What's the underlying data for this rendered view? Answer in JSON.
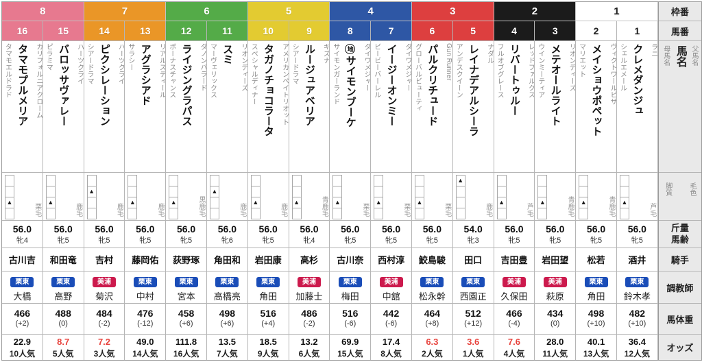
{
  "row_labels": {
    "frame": "枠番",
    "number": "馬番",
    "name": "馬名",
    "sire": "父馬名",
    "dam": "母馬名",
    "style": "脚質",
    "coat": "毛色",
    "kinryo": "斤量",
    "age": "馬齢",
    "jockey": "騎手",
    "trainer": "調教師",
    "body_weight": "馬体重",
    "odds": "オッズ"
  },
  "glyphs": {
    "style_marker": "▲"
  },
  "colors": {
    "frames": {
      "8": {
        "bg": "#e7798f",
        "fg": "#ffffff"
      },
      "7": {
        "bg": "#ea9627",
        "fg": "#ffffff"
      },
      "6": {
        "bg": "#54ab48",
        "fg": "#ffffff"
      },
      "5": {
        "bg": "#e3cb31",
        "fg": "#ffffff"
      },
      "4": {
        "bg": "#2e57a5",
        "fg": "#ffffff"
      },
      "3": {
        "bg": "#dd3f3f",
        "fg": "#ffffff"
      },
      "2": {
        "bg": "#1b1b1b",
        "fg": "#ffffff"
      },
      "1": {
        "bg": "#ffffff",
        "fg": "#222222"
      }
    },
    "training_centers": {
      "栗東": "#1a4db8",
      "美浦": "#cc1a4d"
    },
    "hot_odds": "#e8423c"
  },
  "frames": [
    {
      "no": "8"
    },
    {
      "no": "7"
    },
    {
      "no": "6"
    },
    {
      "no": "5"
    },
    {
      "no": "4"
    },
    {
      "no": "3"
    },
    {
      "no": "2"
    },
    {
      "no": "1"
    }
  ],
  "horses": [
    {
      "num": "16",
      "frame": "8",
      "mark": "",
      "name": "タマモプルメリア",
      "sire": "カリフォルニアクローム",
      "dam": "タマモエルドラド",
      "style_row": 3,
      "coat": "栗毛",
      "kinryo": "56.0",
      "age": "牝4",
      "jockey": "古川吉",
      "trainer_center": "栗東",
      "trainer": "大橋",
      "weight": "466",
      "weight_diff": "(+2)",
      "odds": "22.9",
      "odds_hot": false,
      "popularity": "10人気"
    },
    {
      "num": "15",
      "frame": "8",
      "mark": "",
      "name": "バロッサヴァレー",
      "sire": "ハーツクライ",
      "dam": "ピラミマ",
      "style_row": 3,
      "coat": "鹿毛",
      "kinryo": "56.0",
      "age": "牝5",
      "jockey": "和田竜",
      "trainer_center": "栗東",
      "trainer": "高野",
      "weight": "488",
      "weight_diff": "(0)",
      "odds": "8.7",
      "odds_hot": true,
      "popularity": "5人気"
    },
    {
      "num": "14",
      "frame": "7",
      "mark": "",
      "name": "ピクシレーション",
      "sire": "ハーツクライ",
      "dam": "シアードラマ",
      "style_row": 2,
      "coat": "鹿毛",
      "kinryo": "56.0",
      "age": "牝5",
      "jockey": "吉村",
      "trainer_center": "美浦",
      "trainer": "菊沢",
      "weight": "484",
      "weight_diff": "(-2)",
      "odds": "7.2",
      "odds_hot": true,
      "popularity": "3人気"
    },
    {
      "num": "13",
      "frame": "7",
      "mark": "",
      "name": "アグラシアド",
      "sire": "リアルスティール",
      "dam": "サラシー",
      "style_row": 3,
      "coat": "鹿毛",
      "kinryo": "56.0",
      "age": "牝5",
      "jockey": "藤岡佑",
      "trainer_center": "栗東",
      "trainer": "中村",
      "weight": "476",
      "weight_diff": "(-12)",
      "odds": "49.0",
      "odds_hot": false,
      "popularity": "14人気"
    },
    {
      "num": "12",
      "frame": "6",
      "mark": "",
      "name": "ライジングラパス",
      "sire": "ダノンバラード",
      "dam": "ボーナスチャンス",
      "style_row": 3,
      "coat": "黒鹿毛",
      "kinryo": "56.0",
      "age": "牝5",
      "jockey": "荻野琢",
      "trainer_center": "栗東",
      "trainer": "宮本",
      "weight": "458",
      "weight_diff": "(+6)",
      "odds": "111.8",
      "odds_hot": false,
      "popularity": "16人気"
    },
    {
      "num": "11",
      "frame": "6",
      "mark": "",
      "name": "スミ",
      "sire": "リオンディーズ",
      "dam": "マーヴェリックス",
      "style_row": 2,
      "coat": "鹿毛",
      "kinryo": "56.0",
      "age": "牝6",
      "jockey": "角田和",
      "trainer_center": "栗東",
      "trainer": "高橋亮",
      "weight": "498",
      "weight_diff": "(+6)",
      "odds": "13.5",
      "odds_hot": false,
      "popularity": "7人気"
    },
    {
      "num": "10",
      "frame": "5",
      "mark": "",
      "name": "タガノチョコラータ",
      "sire": "アメリカンペイトリオット",
      "dam": "スペシャルディナー",
      "style_row": 3,
      "coat": "鹿毛",
      "kinryo": "56.0",
      "age": "牝5",
      "jockey": "岩田康",
      "trainer_center": "栗東",
      "trainer": "角田",
      "weight": "516",
      "weight_diff": "(+4)",
      "odds": "18.5",
      "odds_hot": false,
      "popularity": "9人気"
    },
    {
      "num": "9",
      "frame": "5",
      "mark": "",
      "name": "ルージュアベリア",
      "sire": "キズナ",
      "dam": "シアードラマ",
      "style_row": 3,
      "coat": "青鹿毛",
      "kinryo": "56.0",
      "age": "牝4",
      "jockey": "高杉",
      "trainer_center": "美浦",
      "trainer": "加藤士",
      "weight": "486",
      "weight_diff": "(-2)",
      "odds": "13.2",
      "odds_hot": false,
      "popularity": "6人気"
    },
    {
      "num": "8",
      "frame": "4",
      "mark": "地",
      "name": "サイモンブーケ",
      "sire": "ダイワメジャー",
      "dam": "サイモンガーランド",
      "style_row": 3,
      "coat": "栗毛",
      "kinryo": "56.0",
      "age": "牝5",
      "jockey": "古川奈",
      "trainer_center": "栗東",
      "trainer": "梅田",
      "weight": "516",
      "weight_diff": "(-6)",
      "odds": "69.9",
      "odds_hot": false,
      "popularity": "15人気"
    },
    {
      "num": "7",
      "frame": "4",
      "mark": "",
      "name": "イージーオンミー",
      "sire": "ダイワメジャー",
      "dam": "ビービーバーレル",
      "style_row": 3,
      "coat": "栗毛",
      "kinryo": "56.0",
      "age": "牝5",
      "jockey": "西村淳",
      "trainer_center": "美浦",
      "trainer": "中舘",
      "weight": "442",
      "weight_diff": "(-6)",
      "odds": "17.4",
      "odds_hot": false,
      "popularity": "8人気"
    },
    {
      "num": "6",
      "frame": "3",
      "mark": "",
      "name": "パルクリチュード",
      "sire": "Gun Runner",
      "dam": "グローバルビューティ",
      "style_row": 3,
      "coat": "栗毛",
      "kinryo": "56.0",
      "age": "牝5",
      "jockey": "鮫島駿",
      "trainer_center": "栗東",
      "trainer": "松永幹",
      "weight": "464",
      "weight_diff": "(+8)",
      "odds": "6.3",
      "odds_hot": true,
      "popularity": "2人気"
    },
    {
      "num": "5",
      "frame": "3",
      "mark": "",
      "name": "レイナデアルシーラ",
      "sire": "ナダル",
      "dam": "アンデスクイーン",
      "style_row": 1,
      "coat": "鹿毛",
      "kinryo": "54.0",
      "age": "牝3",
      "jockey": "田口",
      "trainer_center": "栗東",
      "trainer": "西園正",
      "weight": "512",
      "weight_diff": "(+12)",
      "odds": "3.6",
      "odds_hot": true,
      "popularity": "1人気"
    },
    {
      "num": "4",
      "frame": "2",
      "mark": "",
      "name": "リバートゥルー",
      "sire": "レッドファルクス",
      "dam": "フルオブグレース",
      "style_row": 3,
      "coat": "芦毛",
      "kinryo": "56.0",
      "age": "牝5",
      "jockey": "吉田豊",
      "trainer_center": "美浦",
      "trainer": "久保田",
      "weight": "466",
      "weight_diff": "(-4)",
      "odds": "7.6",
      "odds_hot": true,
      "popularity": "4人気"
    },
    {
      "num": "3",
      "frame": "2",
      "mark": "",
      "name": "メテオールライト",
      "sire": "リオンディーズ",
      "dam": "ウインミーティア",
      "style_row": 3,
      "coat": "青鹿毛",
      "kinryo": "56.0",
      "age": "牝5",
      "jockey": "岩田望",
      "trainer_center": "美浦",
      "trainer": "萩原",
      "weight": "434",
      "weight_diff": "(0)",
      "odds": "28.0",
      "odds_hot": false,
      "popularity": "11人気"
    },
    {
      "num": "2",
      "frame": "1",
      "mark": "",
      "name": "メイショウポペット",
      "sire": "ヴィクトワールピサ",
      "dam": "マリエット",
      "style_row": 3,
      "coat": "青鹿毛",
      "kinryo": "56.0",
      "age": "牝5",
      "jockey": "松若",
      "trainer_center": "栗東",
      "trainer": "角田",
      "weight": "498",
      "weight_diff": "(+10)",
      "odds": "40.1",
      "odds_hot": false,
      "popularity": "13人気"
    },
    {
      "num": "1",
      "frame": "1",
      "mark": "",
      "name": "クレメダンジュ",
      "sire": "ラニ",
      "dam": "シェルエメール",
      "style_row": 3,
      "coat": "芦毛",
      "kinryo": "56.0",
      "age": "牝5",
      "jockey": "酒井",
      "trainer_center": "栗東",
      "trainer": "鈴木孝",
      "weight": "482",
      "weight_diff": "(+10)",
      "odds": "36.4",
      "odds_hot": false,
      "popularity": "12人気"
    }
  ]
}
